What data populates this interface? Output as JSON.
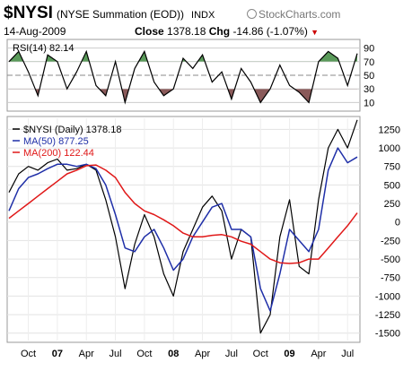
{
  "header": {
    "symbol": "$NYSI",
    "name": "(NYSE Summation (EOD))",
    "exchange": "INDX",
    "brand": "StockCharts.com",
    "date": "14-Aug-2009",
    "close_label": "Close",
    "close_value": "1378.18",
    "chg_label": "Chg",
    "chg_value": "-14.86 (-1.07%)",
    "chg_direction": "down-arrow-icon"
  },
  "rsi_panel": {
    "label": "RSI(14) 82.14",
    "levels": [
      "90",
      "70",
      "50",
      "30",
      "10"
    ]
  },
  "legend": {
    "main": "$NYSI (Daily) 1378.18",
    "ma50": "MA(50) 877.25",
    "ma200": "MA(200) 122.44"
  },
  "x_ticks": [
    "Oct",
    "07",
    "Apr",
    "Jul",
    "Oct",
    "08",
    "Apr",
    "Jul",
    "Oct",
    "09",
    "Apr",
    "Jul"
  ],
  "y_ticks": [
    "1250",
    "1000",
    "750",
    "500",
    "250",
    "0",
    "-250",
    "-500",
    "-750",
    "-1000",
    "-1250",
    "-1500"
  ],
  "colors": {
    "price": "#000000",
    "ma50": "#1f2fa8",
    "ma200": "#e01818",
    "rsi_over": "#5a9a5a",
    "rsi_under": "#8a5a5a"
  },
  "chart_data": {
    "type": "line",
    "x_axis": "date",
    "x": [
      "2006-08",
      "2006-09",
      "2006-10",
      "2006-11",
      "2006-12",
      "2007-01",
      "2007-02",
      "2007-03",
      "2007-04",
      "2007-05",
      "2007-06",
      "2007-07",
      "2007-08",
      "2007-09",
      "2007-10",
      "2007-11",
      "2007-12",
      "2008-01",
      "2008-02",
      "2008-03",
      "2008-04",
      "2008-05",
      "2008-06",
      "2008-07",
      "2008-08",
      "2008-09",
      "2008-10",
      "2008-11",
      "2008-12",
      "2009-01",
      "2009-02",
      "2009-03",
      "2009-04",
      "2009-05",
      "2009-06",
      "2009-07",
      "2009-08"
    ],
    "series": [
      {
        "name": "$NYSI (Daily)",
        "values": [
          400,
          650,
          750,
          700,
          800,
          850,
          700,
          720,
          780,
          700,
          300,
          -200,
          -900,
          -300,
          100,
          -200,
          -700,
          -1000,
          -400,
          -100,
          200,
          350,
          150,
          -500,
          -100,
          -200,
          -1500,
          -1250,
          -200,
          300,
          -600,
          -700,
          300,
          1000,
          1250,
          1000,
          1378
        ]
      },
      {
        "name": "MA(50)",
        "values": [
          150,
          450,
          600,
          650,
          720,
          780,
          780,
          750,
          780,
          720,
          500,
          100,
          -350,
          -400,
          -200,
          -100,
          -350,
          -650,
          -500,
          -200,
          0,
          200,
          250,
          -100,
          -100,
          -200,
          -900,
          -1200,
          -700,
          -100,
          -250,
          -400,
          -100,
          700,
          1000,
          800,
          877
        ]
      },
      {
        "name": "MA(200)",
        "values": [
          50,
          150,
          250,
          350,
          450,
          550,
          650,
          700,
          760,
          770,
          700,
          600,
          400,
          250,
          150,
          100,
          30,
          -50,
          -150,
          -200,
          -200,
          -180,
          -170,
          -200,
          -260,
          -300,
          -400,
          -500,
          -550,
          -560,
          -550,
          -500,
          -500,
          -350,
          -200,
          -50,
          122
        ]
      }
    ],
    "rsi": {
      "name": "RSI(14)",
      "values": [
        70,
        85,
        55,
        20,
        80,
        70,
        30,
        55,
        85,
        35,
        20,
        70,
        10,
        60,
        85,
        40,
        20,
        30,
        75,
        60,
        80,
        40,
        55,
        15,
        60,
        40,
        10,
        30,
        65,
        35,
        25,
        10,
        70,
        85,
        75,
        35,
        82
      ]
    },
    "ylim": [
      -1600,
      1400
    ],
    "rsi_ylim": [
      0,
      100
    ]
  }
}
